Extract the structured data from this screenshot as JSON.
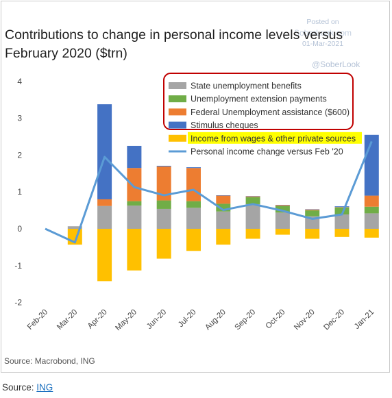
{
  "watermark": {
    "line1": "Posted on",
    "site": "SoberLook.com",
    "date": "01-Mar-2021",
    "handle": "@SoberLook"
  },
  "title": "Contributions to change in personal income levels versus February 2020 ($trn)",
  "source_inside": "Source: Macrobond, ING",
  "footer": {
    "label": "Source:",
    "link_text": "ING"
  },
  "chart_data": {
    "type": "bar",
    "stacked": true,
    "title": "Contributions to change in personal income levels versus February 2020 ($trn)",
    "xlabel": "",
    "ylabel": "",
    "ylim": [
      -2,
      4
    ],
    "yticks": [
      -2,
      -1,
      0,
      1,
      2,
      3,
      4
    ],
    "grid": false,
    "legend_position": "top-right",
    "categories": [
      "Feb-20",
      "Mar-20",
      "Apr-20",
      "May-20",
      "Jun-20",
      "Jul-20",
      "Aug-20",
      "Sep-20",
      "Oct-20",
      "Nov-20",
      "Dec-20",
      "Jan-21"
    ],
    "series": [
      {
        "name": "State unemployment benefits",
        "kind": "bar",
        "color": "#a5a5a5",
        "values": [
          0,
          0.07,
          0.62,
          0.63,
          0.54,
          0.57,
          0.47,
          0.67,
          0.44,
          0.34,
          0.39,
          0.42
        ]
      },
      {
        "name": "Unemployment extension payments",
        "kind": "bar",
        "color": "#70ad47",
        "values": [
          0,
          0,
          0,
          0.12,
          0.23,
          0.18,
          0.21,
          0.19,
          0.18,
          0.16,
          0.19,
          0.18
        ]
      },
      {
        "name": "Federal Unemployment assistance ($600)",
        "kind": "bar",
        "color": "#ed7d31",
        "values": [
          0,
          0,
          0.18,
          0.9,
          0.92,
          0.9,
          0.22,
          0.02,
          0.02,
          0.02,
          0.01,
          0.3
        ]
      },
      {
        "name": "Stimulus cheques",
        "kind": "bar",
        "color": "#4472c4",
        "values": [
          0,
          0,
          2.58,
          0.6,
          0.02,
          0.02,
          0.01,
          0.01,
          0.01,
          0.01,
          0.02,
          1.65
        ]
      },
      {
        "name": "Income from wages & other private sources",
        "kind": "bar",
        "color": "#ffc000",
        "values": [
          0,
          -0.43,
          -1.42,
          -1.13,
          -0.81,
          -0.6,
          -0.43,
          -0.27,
          -0.16,
          -0.27,
          -0.22,
          -0.24
        ]
      },
      {
        "name": "Personal income change versus Feb '20",
        "kind": "line",
        "color": "#5b9bd5",
        "values": [
          0,
          -0.37,
          1.95,
          1.13,
          0.91,
          1.06,
          0.51,
          0.67,
          0.49,
          0.27,
          0.39,
          2.37
        ]
      }
    ],
    "annotations": {
      "boxed_series": [
        "State unemployment benefits",
        "Unemployment extension payments",
        "Federal Unemployment assistance ($600)",
        "Stimulus cheques"
      ],
      "box_color": "#c00000",
      "highlighted_series": "Income from wages & other private sources",
      "highlight_color": "#ffff00"
    }
  }
}
